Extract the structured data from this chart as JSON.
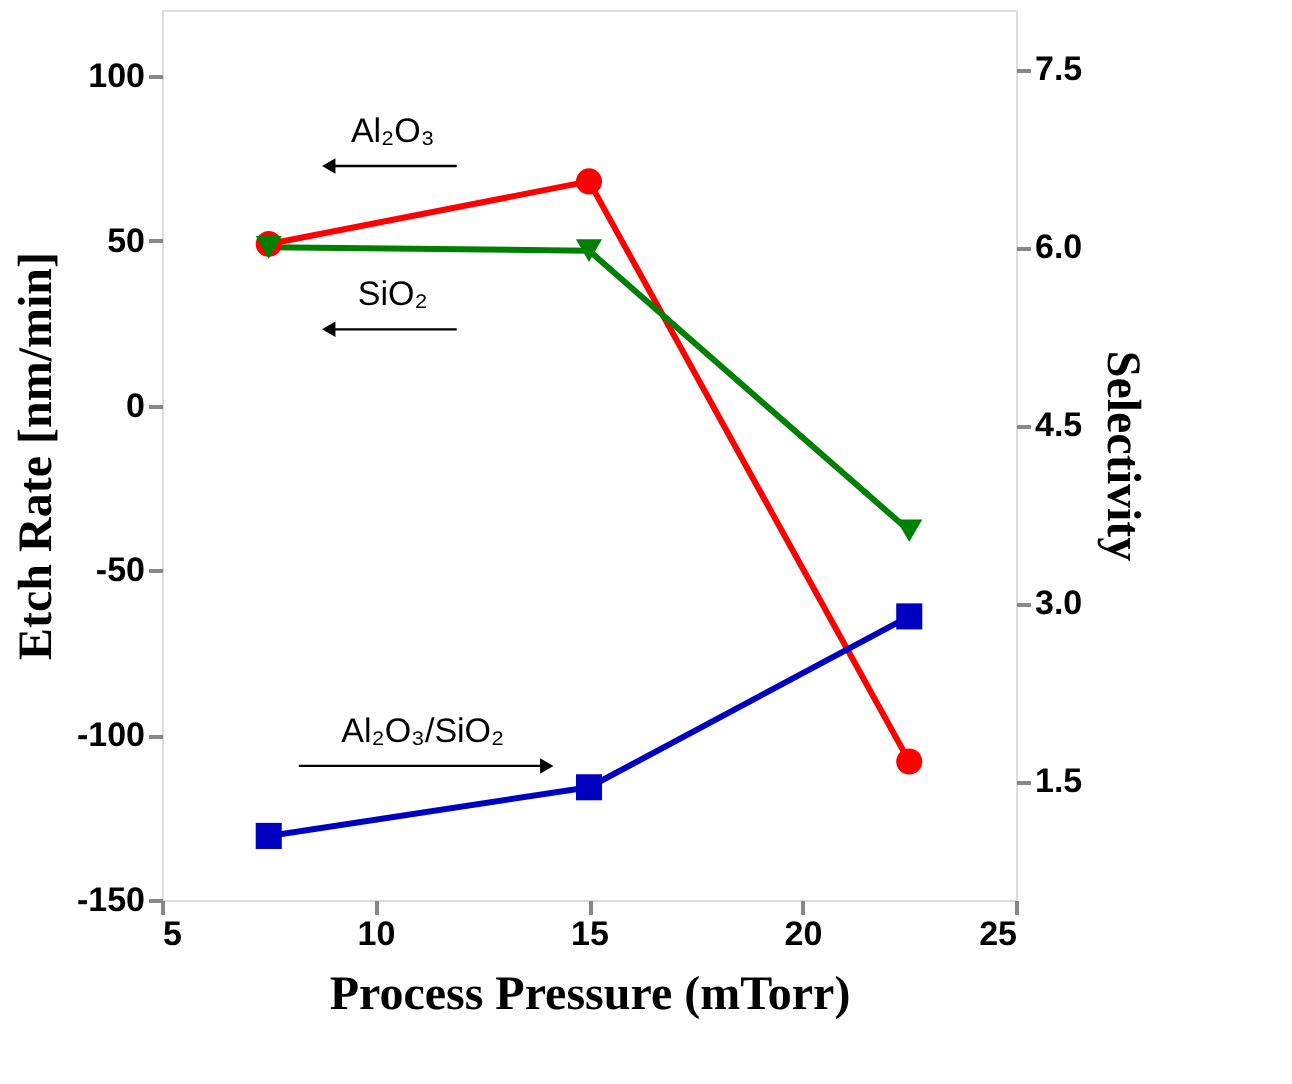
{
  "chart_data": {
    "type": "line",
    "xlabel": "Process Pressure (mTorr)",
    "ylabel": "Etch Rate [nm/min]",
    "y2label": "Selectivity",
    "x": [
      7.5,
      15,
      22.5
    ],
    "xlim": [
      5,
      25
    ],
    "xticks": [
      5,
      10,
      15,
      20,
      25
    ],
    "ylim": [
      -150,
      120
    ],
    "yticks": [
      -150,
      -100,
      -50,
      0,
      50,
      100
    ],
    "y2lim": [
      0.5,
      8.0
    ],
    "y2ticks": [
      1.5,
      {
        "value": 3,
        "label": "3.0"
      },
      4.5,
      {
        "value": 6,
        "label": "6.0"
      },
      7.5
    ],
    "grid": false,
    "legend": false,
    "line_style": "solid",
    "series": [
      {
        "name": "Al₂O₃",
        "color": "#ff0000",
        "marker": "circle",
        "values": [
          49,
          68,
          -108
        ]
      },
      {
        "name": "SiO₂",
        "color": "#008000",
        "marker": "triangle",
        "values": [
          48,
          47,
          -38
        ]
      },
      {
        "name": "Al₂O₃/SiO₂",
        "color": "#0000c0",
        "marker": "square",
        "axis": "y2",
        "values": [
          1.04,
          1.45,
          2.89
        ]
      }
    ]
  }
}
